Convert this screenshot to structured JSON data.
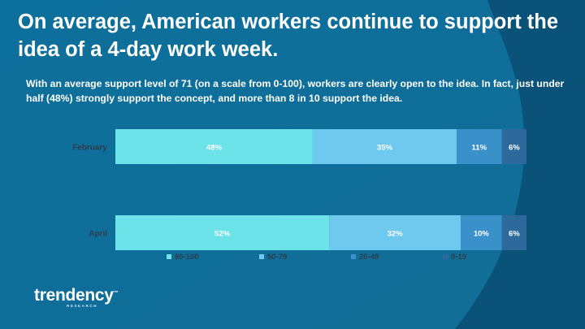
{
  "title": "On average, American workers continue to support the idea of a 4-day work week.",
  "subtitle": "With an average support level of 71 (on a scale from 0-100), workers are clearly open to the idea. In fact, just under half (48%) strongly support the concept, and more than 8 in 10 support the idea.",
  "brand": {
    "name": "trendency",
    "mark": "™",
    "tagline": "RESEARCH"
  },
  "colors": {
    "background": "#0f6e9a",
    "background_dark": "#0a4f74",
    "seg_80_100": "#6be3e8",
    "seg_50_79": "#6fc9ee",
    "seg_20_49": "#3a91c9",
    "seg_0_19": "#2b6a9b",
    "text": "#ffffff",
    "label_dark": "#2f3d4c"
  },
  "chart_data": {
    "type": "bar",
    "orientation": "horizontal",
    "stacked": true,
    "categories": [
      "February",
      "April"
    ],
    "series": [
      {
        "name": "80-100",
        "values": [
          48,
          52
        ],
        "labels": [
          "48%",
          "52%"
        ]
      },
      {
        "name": "50-79",
        "values": [
          35,
          32
        ],
        "labels": [
          "35%",
          "32%"
        ]
      },
      {
        "name": "20-49",
        "values": [
          11,
          10
        ],
        "labels": [
          "11%",
          "10%"
        ]
      },
      {
        "name": "0-19",
        "values": [
          6,
          6
        ],
        "labels": [
          "6%",
          "6%"
        ]
      }
    ],
    "xlim": [
      0,
      100
    ],
    "title": "",
    "xlabel": "",
    "ylabel": "",
    "legend": "bottom",
    "grid": false
  }
}
